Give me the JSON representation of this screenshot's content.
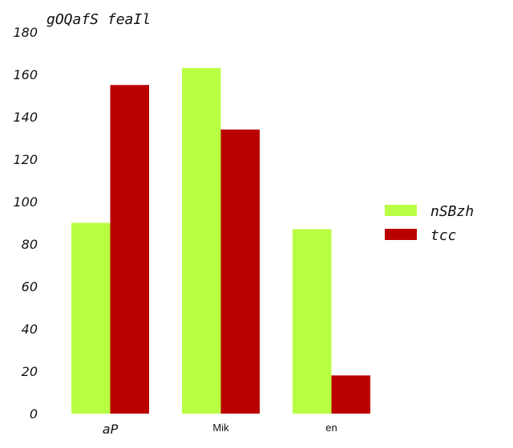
{
  "chart_data": {
    "type": "bar",
    "title": "gOQafS  feaIl",
    "xlabel": "",
    "ylabel": "",
    "categories": [
      "aP",
      "Mik",
      "en"
    ],
    "series": [
      {
        "name": "nSBzh",
        "color": "#b8ff44",
        "values": [
          90,
          163,
          87
        ]
      },
      {
        "name": "tcc",
        "color": "#bb0000",
        "values": [
          155,
          134,
          18
        ]
      }
    ],
    "ylim": [
      0,
      180
    ],
    "yticks": [
      0,
      20,
      40,
      60,
      80,
      100,
      120,
      140,
      160,
      180
    ],
    "grid": false,
    "legend": "right"
  }
}
